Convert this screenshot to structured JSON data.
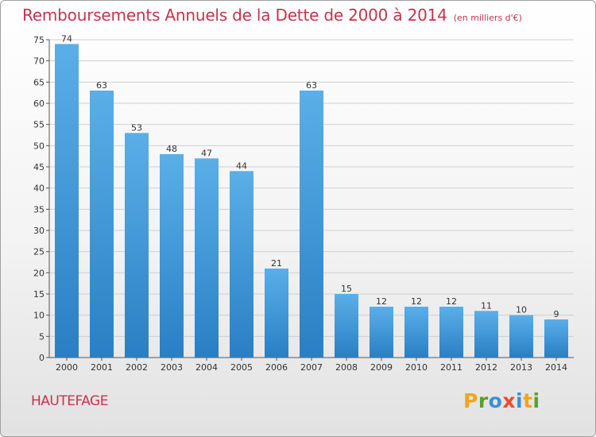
{
  "title": "Remboursements Annuels de la Dette de 2000 à 2014",
  "subtitle": "(en milliers d'€)",
  "commune": "HAUTEFAGE",
  "logo": {
    "letters": [
      "P",
      "r",
      "o",
      "x",
      "i",
      "t",
      "i"
    ],
    "colors": [
      "#f2a51c",
      "#5aa02c",
      "#3a8fd6",
      "#e84e2c",
      "#3a8fd6",
      "#f2a51c",
      "#5aa02c"
    ]
  },
  "colors": {
    "bar_light": "#5aafe8",
    "bar_dark": "#2a7fc4",
    "title": "#c4344e",
    "grid": "#cfcfcf"
  },
  "chart_data": {
    "type": "bar",
    "title": "Remboursements Annuels de la Dette de 2000 à 2014",
    "subtitle": "(en milliers d'€)",
    "categories": [
      "2000",
      "2001",
      "2002",
      "2003",
      "2004",
      "2005",
      "2006",
      "2007",
      "2008",
      "2009",
      "2010",
      "2011",
      "2012",
      "2013",
      "2014"
    ],
    "values": [
      74,
      63,
      53,
      48,
      47,
      44,
      21,
      63,
      15,
      12,
      12,
      12,
      11,
      10,
      9
    ],
    "ylim": [
      0,
      75
    ],
    "yticks": [
      0,
      5,
      10,
      15,
      20,
      25,
      30,
      35,
      40,
      45,
      50,
      55,
      60,
      65,
      70,
      75
    ],
    "xlabel": "",
    "ylabel": "",
    "grid": true,
    "legend": "none"
  }
}
